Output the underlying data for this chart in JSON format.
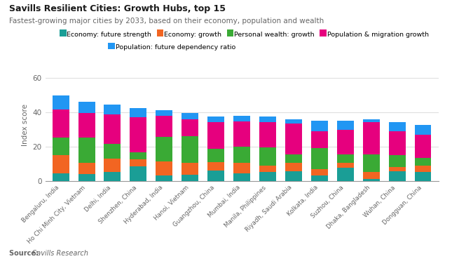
{
  "title": "Savills Resilient Cities: Growth Hubs, top 15",
  "subtitle": "Fastest-growing major cities by 2033, based on their economy, population and wealth",
  "source": "Savills Research",
  "ylabel": "Index score",
  "ylim": [
    0,
    65
  ],
  "yticks": [
    0,
    20,
    40,
    60
  ],
  "categories": [
    "Bengaluru, India",
    "Ho Chi Minh City, Vietnam",
    "Delhi, India",
    "Shenzhen, China",
    "Hyderabad, India",
    "Hanoi, Vietnam",
    "Guangzhou, China",
    "Mumbai, India",
    "Manila, Philippines",
    "Riyadh, Saudi Arabia",
    "Kolkata, India",
    "Suzhou, China",
    "Dhaka, Bangladesh",
    "Wuhan, China",
    "Dongguan, China"
  ],
  "series": {
    "Economy: future strength": {
      "color": "#1a9e96",
      "values": [
        4.5,
        4.0,
        5.0,
        8.5,
        3.0,
        3.5,
        6.0,
        4.5,
        5.0,
        5.5,
        3.0,
        7.5,
        1.0,
        5.5,
        5.0
      ]
    },
    "Economy: growth": {
      "color": "#f26522",
      "values": [
        10.5,
        6.5,
        8.0,
        4.0,
        8.5,
        7.0,
        5.0,
        6.0,
        4.0,
        5.0,
        4.0,
        3.0,
        4.0,
        2.5,
        4.0
      ]
    },
    "Personal wealth: growth": {
      "color": "#3aaa35",
      "values": [
        10.0,
        14.5,
        8.5,
        4.0,
        14.0,
        15.5,
        7.5,
        9.5,
        10.5,
        5.0,
        12.0,
        5.0,
        10.5,
        7.0,
        4.5
      ]
    },
    "Population & migration growth": {
      "color": "#e6007e",
      "values": [
        16.5,
        14.5,
        17.0,
        20.5,
        12.5,
        10.0,
        15.5,
        14.5,
        14.5,
        18.0,
        10.0,
        14.0,
        18.5,
        14.0,
        13.5
      ]
    },
    "Population: future dependency ratio": {
      "color": "#2196f3",
      "values": [
        8.0,
        6.5,
        6.0,
        5.5,
        3.0,
        3.5,
        3.5,
        3.5,
        3.5,
        2.5,
        6.0,
        5.5,
        2.0,
        5.0,
        5.5
      ]
    }
  },
  "legend_order": [
    "Economy: future strength",
    "Economy: growth",
    "Personal wealth: growth",
    "Population & migration growth",
    "Population: future dependency ratio"
  ],
  "background_color": "#ffffff",
  "grid_color": "#e0e0e0",
  "title_color": "#1a1a1a",
  "subtitle_color": "#666666",
  "axis_label_color": "#666666",
  "tick_label_color": "#666666"
}
